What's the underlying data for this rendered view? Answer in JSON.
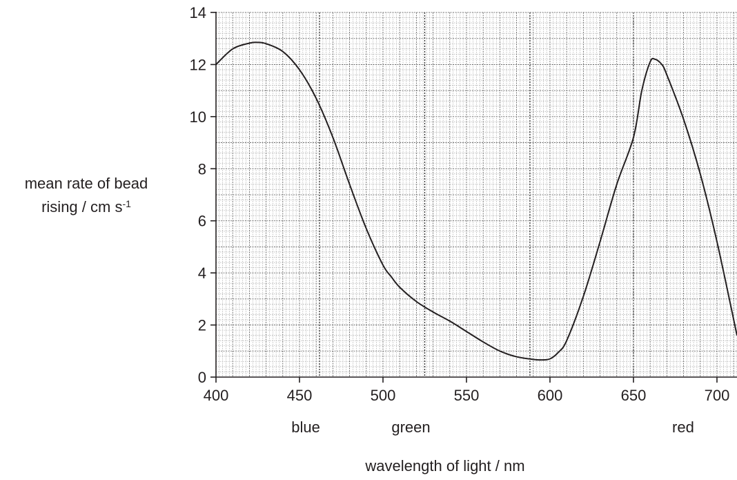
{
  "chart_data": {
    "type": "line",
    "xlabel": "wavelength of light / nm",
    "ylabel_line1": "mean rate of bead",
    "ylabel_line2_text": "rising / cm s",
    "ylabel_line2_sup": "-1",
    "xlim": [
      400,
      712
    ],
    "ylim": [
      0,
      14
    ],
    "x_ticks": [
      400,
      450,
      500,
      550,
      600,
      650,
      700
    ],
    "y_ticks": [
      0,
      2,
      4,
      6,
      8,
      10,
      12,
      14
    ],
    "grid": true,
    "color_bands": [
      {
        "label": "blue",
        "x": 462,
        "divider": 462
      },
      {
        "label": "green",
        "x": 525,
        "divider": 525
      },
      {
        "label": "red",
        "x": 688,
        "divider": 588
      }
    ],
    "band_dividers": [
      462,
      525,
      588,
      650
    ],
    "series": [
      {
        "x": [
          400,
          410,
          420,
          425,
          430,
          440,
          450,
          460,
          470,
          480,
          490,
          500,
          505,
          510,
          520,
          530,
          540,
          550,
          560,
          570,
          580,
          590,
          595,
          600,
          605,
          610,
          620,
          630,
          640,
          650,
          655,
          660,
          663,
          667,
          670,
          680,
          690,
          700,
          712
        ],
        "y": [
          12.0,
          12.6,
          12.82,
          12.85,
          12.8,
          12.5,
          11.8,
          10.7,
          9.2,
          7.4,
          5.7,
          4.3,
          3.85,
          3.45,
          2.9,
          2.5,
          2.15,
          1.75,
          1.35,
          1.0,
          0.78,
          0.68,
          0.66,
          0.7,
          0.95,
          1.4,
          3.1,
          5.2,
          7.4,
          9.2,
          11.0,
          12.1,
          12.2,
          12.0,
          11.6,
          9.9,
          7.8,
          5.2,
          1.6
        ]
      }
    ]
  }
}
